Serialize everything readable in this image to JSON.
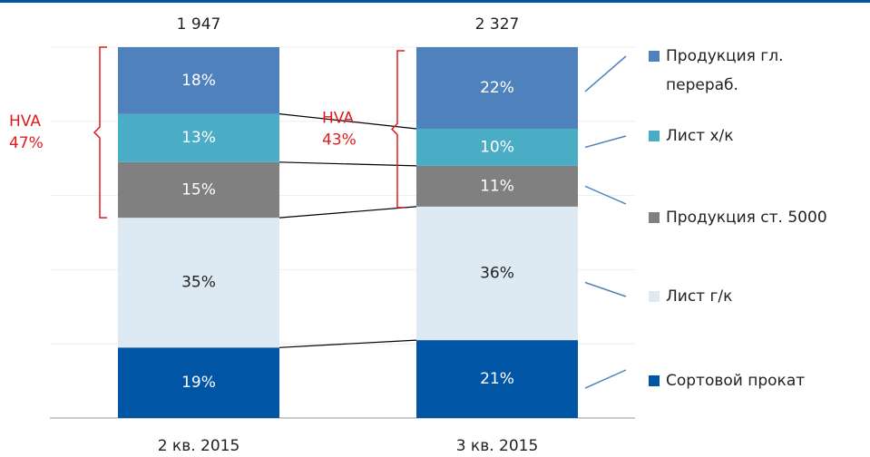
{
  "chart_data": {
    "type": "stacked_bar",
    "categories": [
      "2 кв. 2015",
      "3 кв. 2015"
    ],
    "totals": {
      "values": [
        1947,
        2327
      ],
      "value_labels": [
        "1 947",
        "2 327"
      ]
    },
    "series": [
      {
        "name": "Сортовой прокат",
        "color": "#0055a5",
        "values": [
          19,
          21
        ],
        "value_labels": [
          "19%",
          "21%"
        ]
      },
      {
        "name": "Лист г/к",
        "color": "#dde9f3",
        "values": [
          35,
          36
        ],
        "value_labels": [
          "35%",
          "36%"
        ]
      },
      {
        "name": "Продукция ст. 5000",
        "color": "#808080",
        "values": [
          15,
          11
        ],
        "value_labels": [
          "15%",
          "11%"
        ]
      },
      {
        "name": "Лист х/к",
        "color": "#4bacc6",
        "values": [
          13,
          10
        ],
        "value_labels": [
          "13%",
          "10%"
        ]
      },
      {
        "name": "Продукция гл. перераб.",
        "color": "#4f81bd",
        "values": [
          18,
          22
        ],
        "value_labels": [
          "18%",
          "22%"
        ]
      }
    ],
    "annotations": [
      {
        "text": "HVA",
        "value_label": "47%"
      },
      {
        "text": "HVA",
        "value_label": "43%"
      }
    ],
    "ylim": [
      0,
      100
    ],
    "yticks": [
      0,
      20,
      40,
      60,
      80,
      100
    ],
    "grid": true
  }
}
